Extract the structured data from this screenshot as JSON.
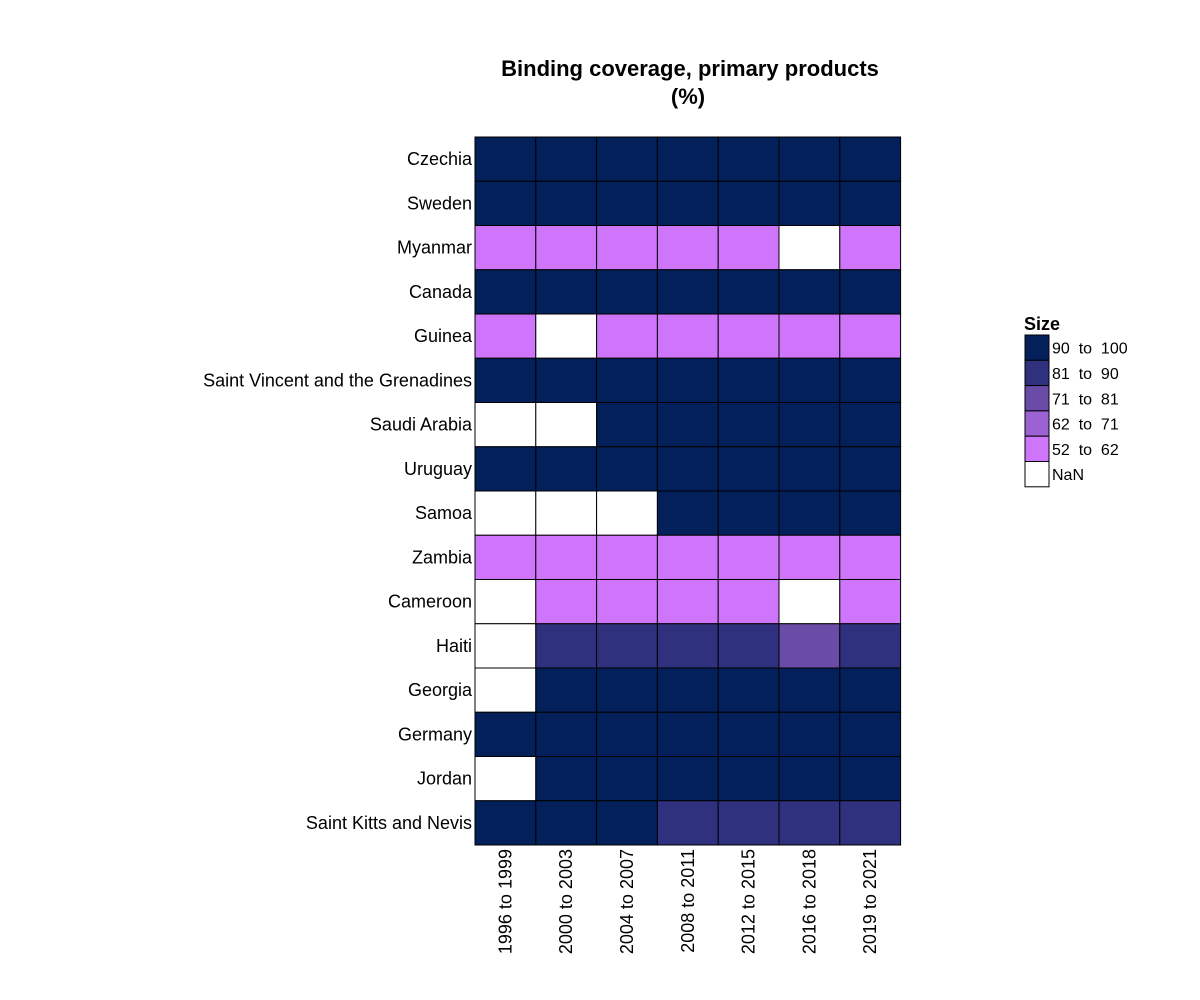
{
  "chart_data": {
    "type": "heatmap",
    "title": "Binding coverage, primary products",
    "subtitle": "(%)",
    "rows": [
      "Czechia",
      "Sweden",
      "Myanmar",
      "Canada",
      "Guinea",
      "Saint Vincent and the Grenadines",
      "Saudi Arabia",
      "Uruguay",
      "Samoa",
      "Zambia",
      "Cameroon",
      "Haiti",
      "Georgia",
      "Germany",
      "Jordan",
      "Saint Kitts and Nevis"
    ],
    "columns": [
      "1996 to 1999",
      "2000 to 2003",
      "2004 to 2007",
      "2008 to 2011",
      "2012 to 2015",
      "2016 to 2018",
      "2019 to 2021"
    ],
    "bins": [
      "90 to 100",
      "81 to 90",
      "71 to 81",
      "62 to 71",
      "52 to 62",
      "NaN"
    ],
    "cells": [
      [
        "90 to 100",
        "90 to 100",
        "90 to 100",
        "90 to 100",
        "90 to 100",
        "90 to 100",
        "90 to 100"
      ],
      [
        "90 to 100",
        "90 to 100",
        "90 to 100",
        "90 to 100",
        "90 to 100",
        "90 to 100",
        "90 to 100"
      ],
      [
        "52 to 62",
        "52 to 62",
        "52 to 62",
        "52 to 62",
        "52 to 62",
        "NaN",
        "52 to 62"
      ],
      [
        "90 to 100",
        "90 to 100",
        "90 to 100",
        "90 to 100",
        "90 to 100",
        "90 to 100",
        "90 to 100"
      ],
      [
        "52 to 62",
        "NaN",
        "52 to 62",
        "52 to 62",
        "52 to 62",
        "52 to 62",
        "52 to 62"
      ],
      [
        "90 to 100",
        "90 to 100",
        "90 to 100",
        "90 to 100",
        "90 to 100",
        "90 to 100",
        "90 to 100"
      ],
      [
        "NaN",
        "NaN",
        "90 to 100",
        "90 to 100",
        "90 to 100",
        "90 to 100",
        "90 to 100"
      ],
      [
        "90 to 100",
        "90 to 100",
        "90 to 100",
        "90 to 100",
        "90 to 100",
        "90 to 100",
        "90 to 100"
      ],
      [
        "NaN",
        "NaN",
        "NaN",
        "90 to 100",
        "90 to 100",
        "90 to 100",
        "90 to 100"
      ],
      [
        "52 to 62",
        "52 to 62",
        "52 to 62",
        "52 to 62",
        "52 to 62",
        "52 to 62",
        "52 to 62"
      ],
      [
        "NaN",
        "52 to 62",
        "52 to 62",
        "52 to 62",
        "52 to 62",
        "NaN",
        "52 to 62"
      ],
      [
        "NaN",
        "81 to 90",
        "81 to 90",
        "81 to 90",
        "81 to 90",
        "71 to 81",
        "81 to 90"
      ],
      [
        "NaN",
        "90 to 100",
        "90 to 100",
        "90 to 100",
        "90 to 100",
        "90 to 100",
        "90 to 100"
      ],
      [
        "90 to 100",
        "90 to 100",
        "90 to 100",
        "90 to 100",
        "90 to 100",
        "90 to 100",
        "90 to 100"
      ],
      [
        "NaN",
        "90 to 100",
        "90 to 100",
        "90 to 100",
        "90 to 100",
        "90 to 100",
        "90 to 100"
      ],
      [
        "90 to 100",
        "90 to 100",
        "90 to 100",
        "81 to 90",
        "81 to 90",
        "81 to 90",
        "81 to 90"
      ]
    ],
    "legend": {
      "title": "Size",
      "placement": "right",
      "entries": [
        {
          "label": "90  to  100",
          "color": "#03205a"
        },
        {
          "label": "81  to  90",
          "color": "#2f307e"
        },
        {
          "label": "71  to  81",
          "color": "#6b4ba8"
        },
        {
          "label": "62  to  71",
          "color": "#9c62d4"
        },
        {
          "label": "52  to  62",
          "color": "#cf75fb"
        },
        {
          "label": "NaN",
          "color": "#ffffff"
        }
      ]
    },
    "colors": {
      "90 to 100": "#03205a",
      "81 to 90": "#2f307e",
      "71 to 81": "#6b4ba8",
      "62 to 71": "#9c62d4",
      "52 to 62": "#cf75fb",
      "NaN": "#ffffff"
    }
  }
}
